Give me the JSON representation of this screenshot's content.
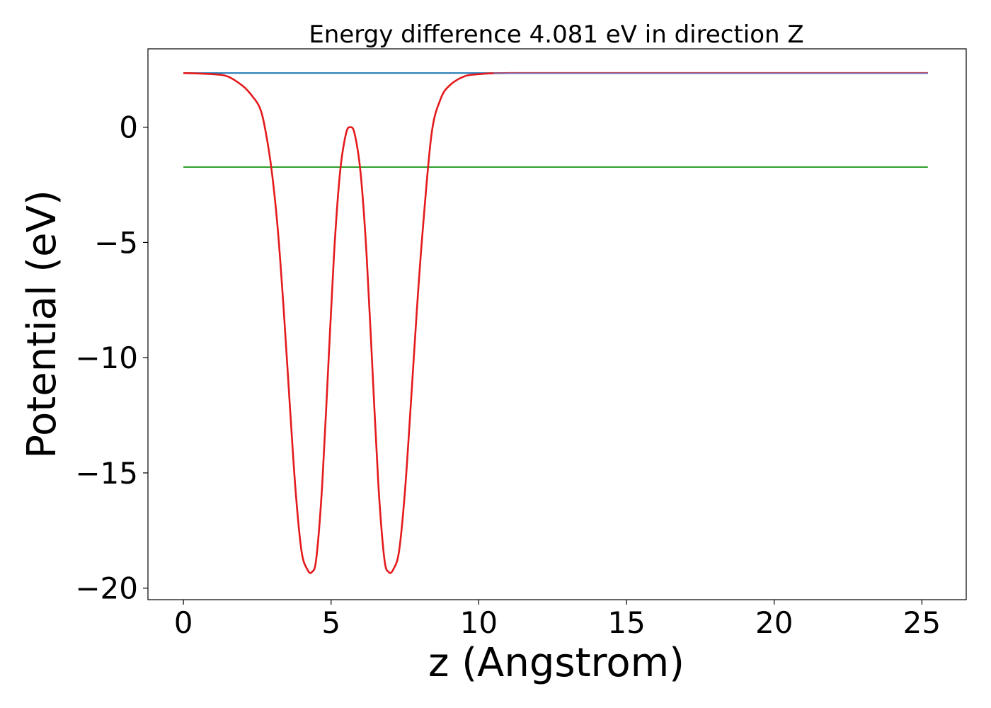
{
  "chart_data": {
    "type": "line",
    "title": "Energy difference 4.081 eV in direction Z",
    "xlabel": "z (Angstrom)",
    "ylabel": "Potential (eV)",
    "xlim": [
      -1.2,
      26.5
    ],
    "ylim": [
      -20.5,
      3.4
    ],
    "x_ticks": [
      0,
      5,
      10,
      15,
      20,
      25
    ],
    "x_tick_labels": [
      "0",
      "5",
      "10",
      "15",
      "20",
      "25"
    ],
    "y_ticks": [
      -20,
      -15,
      -10,
      -5,
      0
    ],
    "y_tick_labels": [
      "−20",
      "−15",
      "−10",
      "−5",
      "0"
    ],
    "grid": false,
    "legend": "none",
    "series": [
      {
        "color": "#1f77b4",
        "x": [
          0,
          25.2
        ],
        "y": [
          2.35,
          2.35
        ]
      },
      {
        "color": "#2ca02c",
        "x": [
          0,
          25.2
        ],
        "y": [
          -1.73,
          -1.73
        ]
      },
      {
        "color": "#e41a1c",
        "x": [
          0,
          1.0,
          1.5,
          2.0,
          2.3,
          2.6,
          2.8,
          3.0,
          3.2,
          3.4,
          3.6,
          3.8,
          4.0,
          4.2,
          4.35,
          4.5,
          4.7,
          4.9,
          5.1,
          5.3,
          5.5,
          5.65,
          5.8,
          6.0,
          6.2,
          6.4,
          6.6,
          6.8,
          6.95,
          7.1,
          7.3,
          7.5,
          7.7,
          7.9,
          8.1,
          8.4,
          8.7,
          9.0,
          9.5,
          10.0,
          11.0,
          15.0,
          20.0,
          25.2
        ],
        "y": [
          2.35,
          2.3,
          2.2,
          1.8,
          1.4,
          0.8,
          -0.3,
          -2.0,
          -4.5,
          -8.0,
          -12.0,
          -15.8,
          -18.4,
          -19.2,
          -19.3,
          -18.7,
          -15.5,
          -10.5,
          -5.5,
          -2.0,
          -0.3,
          0.0,
          -0.3,
          -2.0,
          -5.5,
          -10.5,
          -15.5,
          -18.7,
          -19.3,
          -19.2,
          -18.4,
          -15.8,
          -12.0,
          -8.0,
          -4.5,
          -0.3,
          1.2,
          1.8,
          2.2,
          2.3,
          2.35,
          2.35,
          2.35,
          2.35
        ]
      },
      {
        "color": "#7a6ea8",
        "x": [
          10.5,
          25.2
        ],
        "y": [
          2.34,
          2.34
        ]
      }
    ]
  }
}
